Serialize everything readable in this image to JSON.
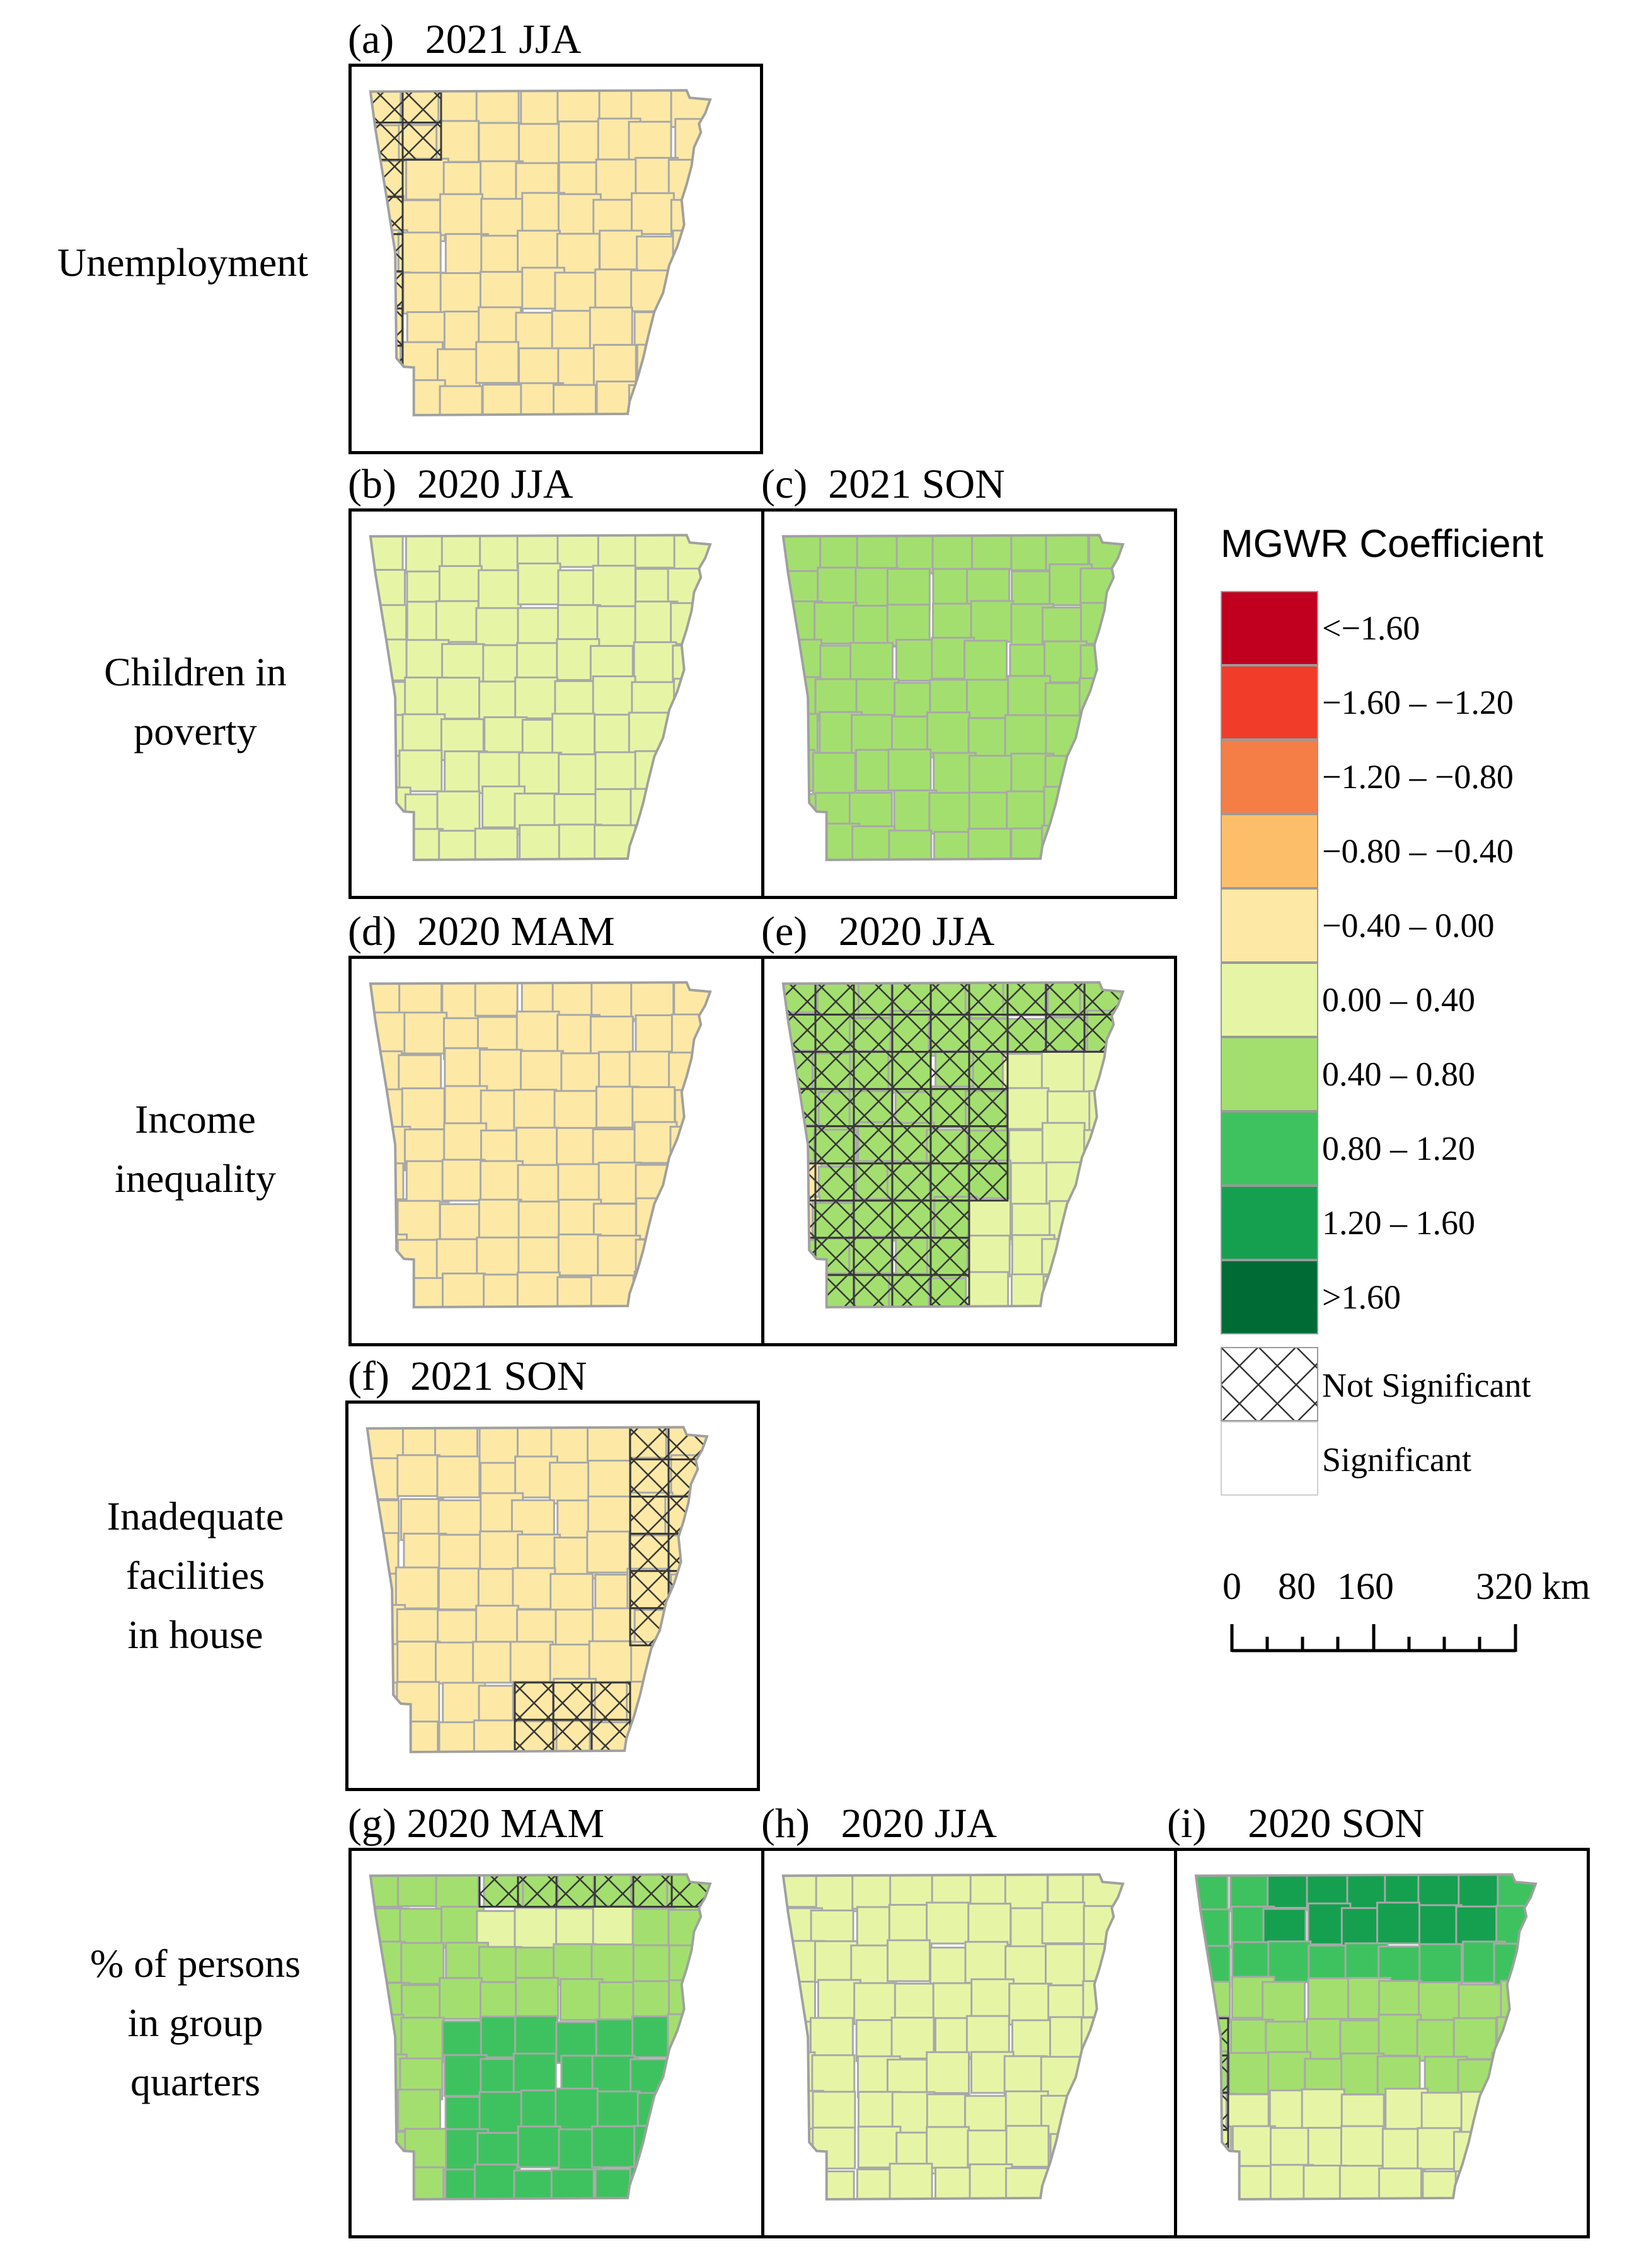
{
  "panels": [
    {
      "id": "a",
      "label": "(a)",
      "title": "2021 JJA"
    },
    {
      "id": "b",
      "label": "(b)",
      "title": "2020 JJA"
    },
    {
      "id": "c",
      "label": "(c)",
      "title": "2021 SON"
    },
    {
      "id": "d",
      "label": "(d)",
      "title": "2020 MAM"
    },
    {
      "id": "e",
      "label": "(e)",
      "title": "2020 JJA"
    },
    {
      "id": "f",
      "label": "(f)",
      "title": "2021 SON"
    },
    {
      "id": "g",
      "label": "(g)",
      "title": "2020 MAM"
    },
    {
      "id": "h",
      "label": "(h)",
      "title": "2020 JJA"
    },
    {
      "id": "i",
      "label": "(i)",
      "title": "2020 SON"
    }
  ],
  "row_labels": {
    "unemployment": "Unemployment",
    "children_line1": "Children in",
    "children_line2": "poverty",
    "income_line1": "Income",
    "income_line2": "inequality",
    "inadequate_line1": "Inadequate",
    "inadequate_line2": "facilities",
    "inadequate_line3": "in house",
    "group_line1": "% of persons",
    "group_line2": "in group",
    "group_line3": "quarters"
  },
  "legend": {
    "title": "MGWR Coefficient",
    "classes": [
      {
        "label": "<−1.60",
        "color": "#c0001e"
      },
      {
        "label": "−1.60 – −1.20",
        "color": "#f03c28"
      },
      {
        "label": "−1.20 – −0.80",
        "color": "#f57d46"
      },
      {
        "label": "−0.80 – −0.40",
        "color": "#fcbe69"
      },
      {
        "label": "−0.40 – 0.00",
        "color": "#fde9a5"
      },
      {
        "label": "0.00 – 0.40",
        "color": "#e6f5a5"
      },
      {
        "label": "0.40 – 0.80",
        "color": "#a3df6e"
      },
      {
        "label": "0.80 – 1.20",
        "color": "#3ec25f"
      },
      {
        "label": "1.20 – 1.60",
        "color": "#15a050"
      },
      {
        "label": ">1.60",
        "color": "#006b35"
      }
    ],
    "not_significant": "Not Significant",
    "significant": "Significant"
  },
  "scale_bar": {
    "ticks": [
      "0",
      "80",
      "160",
      "320 km"
    ]
  }
}
